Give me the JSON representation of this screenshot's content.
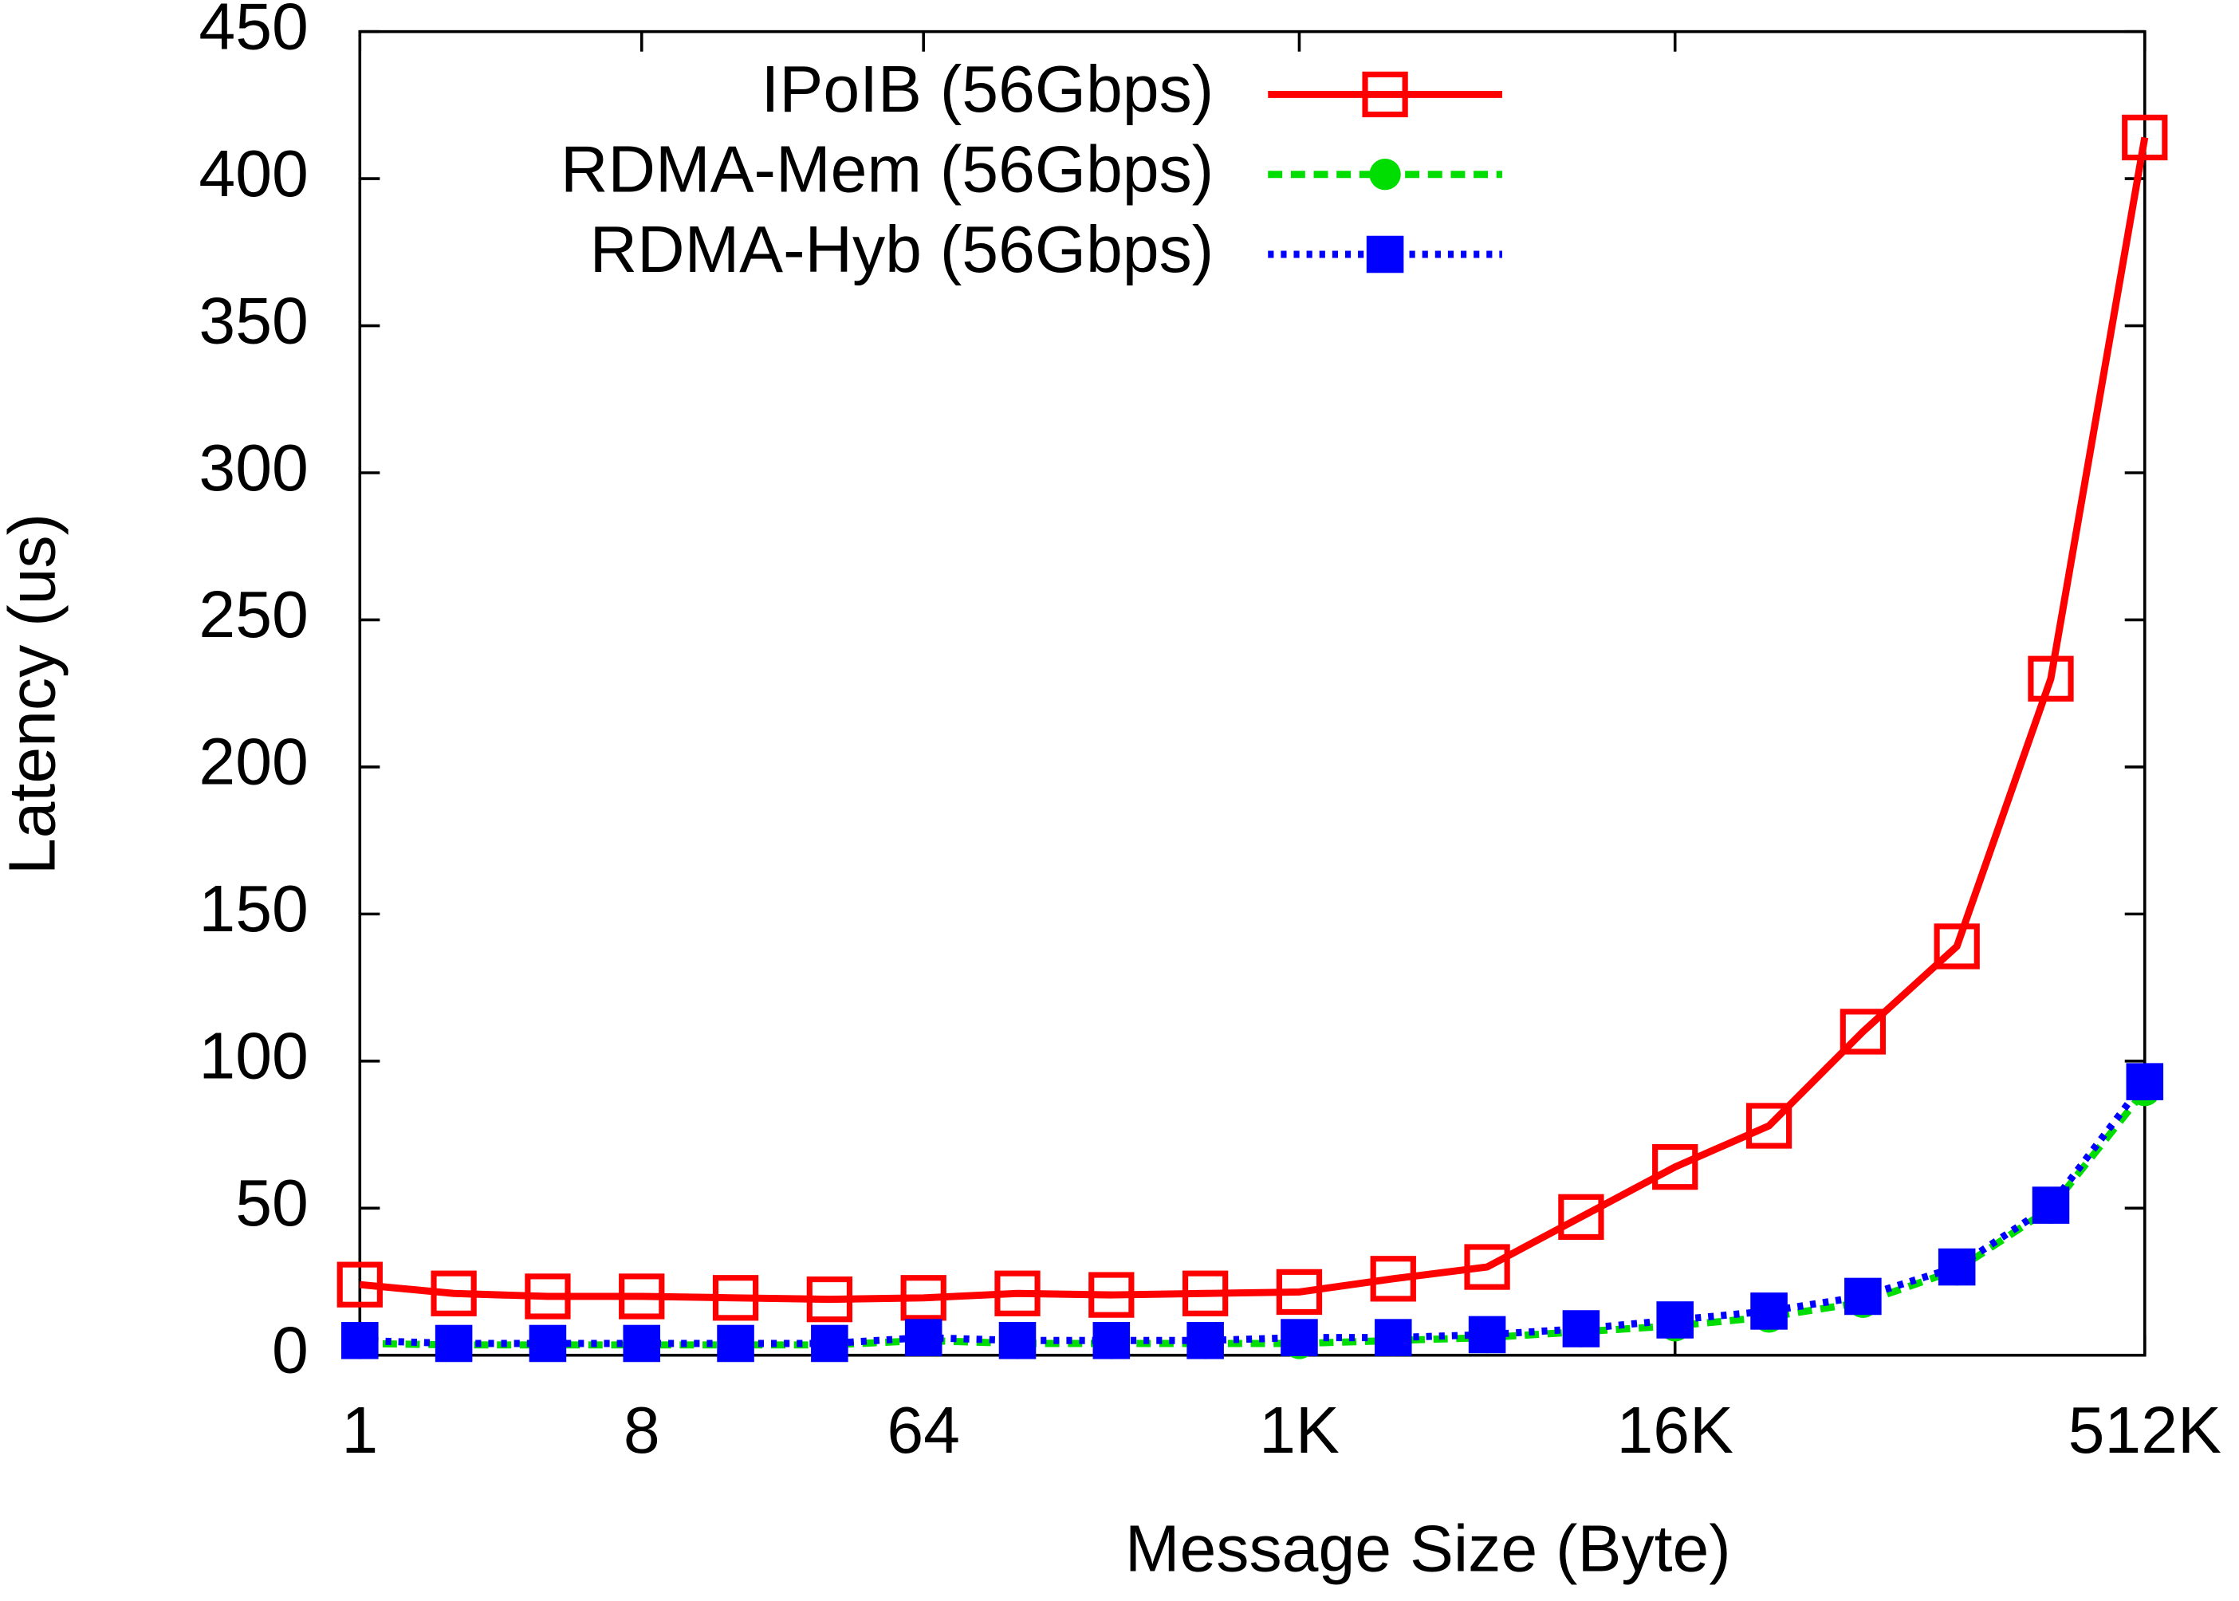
{
  "chart_data": {
    "type": "line",
    "x_label": "Message Size (Byte)",
    "y_label": "Latency (us)",
    "categories": [
      "1",
      null,
      null,
      "8",
      null,
      null,
      "64",
      null,
      null,
      null,
      "1K",
      null,
      null,
      null,
      "16K",
      null,
      null,
      null,
      null,
      "512K"
    ],
    "series": [
      {
        "name": "IPoIB (56Gbps)",
        "color": "#ff0000",
        "marker": "open-square",
        "line_style": "solid",
        "values": [
          24,
          21,
          20,
          20,
          19.5,
          19,
          19.5,
          21,
          20.5,
          21,
          21.5,
          26,
          30,
          47,
          64,
          78,
          110,
          139,
          230,
          414
        ]
      },
      {
        "name": "RDMA-Mem (56Gbps)",
        "color": "#00dd00",
        "marker": "circle",
        "line_style": "dashed",
        "values": [
          4,
          3.5,
          3.5,
          3.5,
          3.5,
          3.5,
          5,
          4,
          4,
          4,
          4,
          5,
          6,
          8,
          10,
          13,
          18,
          29,
          50,
          90
        ]
      },
      {
        "name": "RDMA-Hyb (56Gbps)",
        "color": "#0000ff",
        "marker": "square",
        "line_style": "dotted",
        "values": [
          5,
          4,
          4,
          4,
          4,
          4,
          6,
          5,
          5,
          5,
          6,
          6,
          7,
          9,
          12,
          15,
          20,
          30,
          51,
          93
        ]
      }
    ],
    "ylim": [
      0,
      450
    ],
    "yticks": [
      0,
      50,
      100,
      150,
      200,
      250,
      300,
      350,
      400,
      450
    ],
    "legend": "top"
  }
}
